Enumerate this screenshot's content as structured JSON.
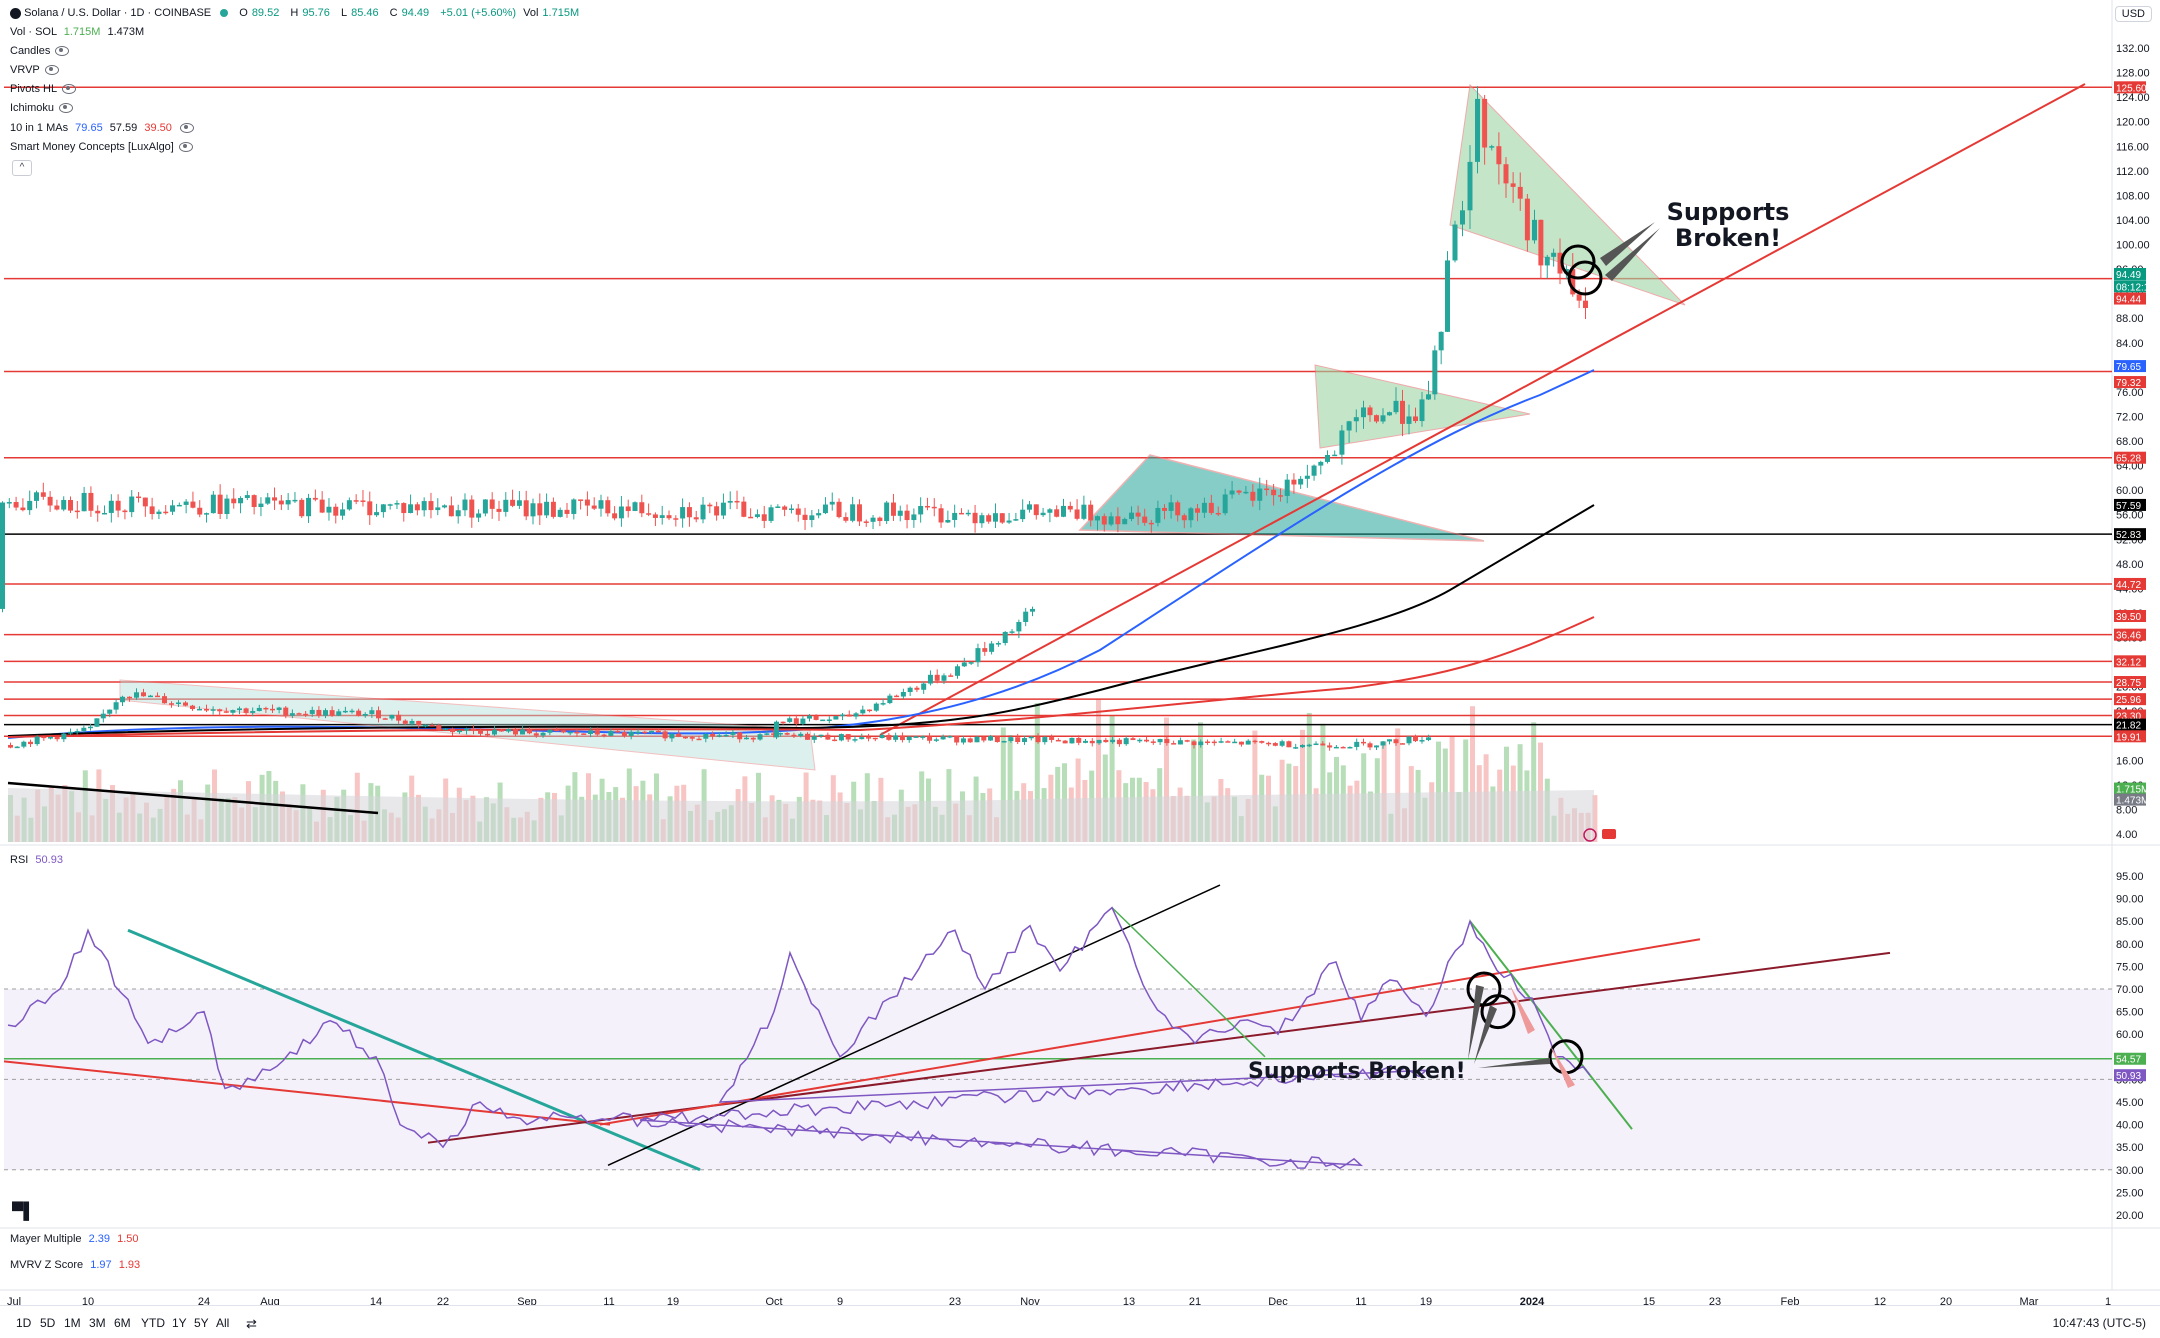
{
  "header": {
    "symbol_title": "Solana / U.S. Dollar · 1D · COINBASE",
    "open_label": "O",
    "open": "89.52",
    "high_label": "H",
    "high": "95.76",
    "low_label": "L",
    "low": "85.46",
    "close_label": "C",
    "close": "94.49",
    "change": "+5.01 (+5.60%)",
    "vol_label": "Vol",
    "vol": "1.715M",
    "currency": "USD"
  },
  "indicators": {
    "vol_sol": {
      "label": "Vol · SOL",
      "v1": "1.715M",
      "v2": "1.473M"
    },
    "candles": "Candles",
    "vrvp": "VRVP",
    "pivots": "Pivots HL",
    "ichimoku": "Ichimoku",
    "mas": {
      "label": "10 in 1 MAs",
      "v1": "79.65",
      "v2": "57.59",
      "v3": "39.50"
    },
    "smc": "Smart Money Concepts [LuxAlgo]",
    "rsi": {
      "label": "RSI",
      "value": "50.93"
    },
    "mayer": {
      "label": "Mayer Multiple",
      "v1": "2.39",
      "v2": "1.50"
    },
    "mvrv": {
      "label": "MVRV Z Score",
      "v1": "1.97",
      "v2": "1.93"
    }
  },
  "annotations": {
    "top_line1": "Supports",
    "top_line2": "Broken!",
    "rsi_text": "Supports Broken!"
  },
  "colors": {
    "up": "#26a69a",
    "down": "#ef5350",
    "red_line": "#e53935",
    "ma_blue": "#2962ff",
    "ma_black": "#000000",
    "ma_red": "#e53935",
    "rsi_line": "#7e57c2",
    "triangle_fill": "#9fd4a6",
    "triangle_teal": "#26a69a"
  },
  "price_axis": {
    "ticks": [
      "132.00",
      "128.00",
      "124.00",
      "120.00",
      "116.00",
      "112.00",
      "108.00",
      "104.00",
      "100.00",
      "96.00",
      "92.00",
      "88.00",
      "84.00",
      "80.00",
      "76.00",
      "72.00",
      "68.00",
      "64.00",
      "60.00",
      "56.00",
      "52.00",
      "48.00",
      "44.00",
      "40.00",
      "36.00",
      "32.00",
      "28.00",
      "24.00",
      "20.00",
      "16.00",
      "12.00",
      "8.00",
      "4.00"
    ],
    "level_boxes": [
      {
        "label": "125.60",
        "color": "#e53935"
      },
      {
        "label": "94.49",
        "color": "#089981"
      },
      {
        "label": "08:12:16",
        "color": "#089981"
      },
      {
        "label": "94.44",
        "color": "#e53935"
      },
      {
        "label": "79.65",
        "color": "#2962ff"
      },
      {
        "label": "79.32",
        "color": "#e53935"
      },
      {
        "label": "65.28",
        "color": "#e53935"
      },
      {
        "label": "57.59",
        "color": "#000000"
      },
      {
        "label": "52.83",
        "color": "#000000"
      },
      {
        "label": "44.72",
        "color": "#e53935"
      },
      {
        "label": "39.50",
        "color": "#e53935"
      },
      {
        "label": "36.46",
        "color": "#e53935"
      },
      {
        "label": "32.12",
        "color": "#e53935"
      },
      {
        "label": "28.75",
        "color": "#e53935"
      },
      {
        "label": "25.96",
        "color": "#e53935"
      },
      {
        "label": "23.30",
        "color": "#e53935"
      },
      {
        "label": "21.82",
        "color": "#000000"
      },
      {
        "label": "19.91",
        "color": "#e53935"
      },
      {
        "label": "1.715M",
        "color": "#4caf50"
      },
      {
        "label": "1.473M",
        "color": "#787b86"
      }
    ]
  },
  "rsi_axis": {
    "ticks": [
      "95.00",
      "90.00",
      "85.00",
      "80.00",
      "75.00",
      "70.00",
      "65.00",
      "60.00",
      "55.00",
      "50.00",
      "45.00",
      "40.00",
      "35.00",
      "30.00",
      "25.00",
      "20.00"
    ],
    "level_boxes": [
      {
        "label": "54.57",
        "color": "#4caf50"
      },
      {
        "label": "50.93",
        "color": "#7e57c2"
      }
    ]
  },
  "time_axis": [
    "Jul",
    "10",
    "24",
    "Aug",
    "14",
    "22",
    "Sep",
    "11",
    "19",
    "Oct",
    "9",
    "23",
    "Nov",
    "13",
    "21",
    "Dec",
    "11",
    "19",
    "2024",
    "15",
    "23",
    "Feb",
    "12",
    "20",
    "Mar",
    "1"
  ],
  "bottom": {
    "ranges": [
      "1D",
      "5D",
      "1M",
      "3M",
      "6M",
      "YTD",
      "1Y",
      "5Y",
      "All"
    ],
    "clock": "10:47:43 (UTC-5)"
  },
  "chart_data": [
    {
      "type": "candlestick",
      "title": "Solana / U.S. Dollar · 1D · COINBASE",
      "ylim": [
        4,
        132
      ],
      "horizontal_levels": [
        125.6,
        94.44,
        79.32,
        65.28,
        52.83,
        44.72,
        36.46,
        32.12,
        28.75,
        25.96,
        23.3,
        21.82,
        19.91
      ],
      "close_path": [
        {
          "date": "Jul",
          "close": 18.5
        },
        {
          "date": "10",
          "close": 21.0
        },
        {
          "date": "Jul 14",
          "close": 27.0
        },
        {
          "date": "24",
          "close": 24.5
        },
        {
          "date": "Aug",
          "close": 24.0
        },
        {
          "date": "14",
          "close": 23.5
        },
        {
          "date": "22",
          "close": 21.0
        },
        {
          "date": "Sep",
          "close": 20.5
        },
        {
          "date": "11",
          "close": 18.5
        },
        {
          "date": "19",
          "close": 19.8
        },
        {
          "date": "Oct",
          "close": 22.5
        },
        {
          "date": "9",
          "close": 22.8
        },
        {
          "date": "23",
          "close": 31.0
        },
        {
          "date": "Nov",
          "close": 40.0
        },
        {
          "date": "Nov 11",
          "close": 58.0
        },
        {
          "date": "13",
          "close": 56.0
        },
        {
          "date": "21",
          "close": 57.0
        },
        {
          "date": "Dec",
          "close": 60.0
        },
        {
          "date": "Dec 3",
          "close": 65.0
        },
        {
          "date": "11",
          "close": 72.0
        },
        {
          "date": "19",
          "close": 73.5
        },
        {
          "date": "Dec 22",
          "close": 95.0
        },
        {
          "date": "Dec 25",
          "close": 121.0
        },
        {
          "date": "2024",
          "close": 101.0
        },
        {
          "date": "Jan 5",
          "close": 89.5
        },
        {
          "date": "Jan 6",
          "close": 94.49
        }
      ],
      "moving_averages": [
        {
          "name": "MA 79.65",
          "last": 79.65
        },
        {
          "name": "MA 57.59",
          "last": 57.59
        },
        {
          "name": "MA 39.50",
          "last": 39.5
        }
      ]
    },
    {
      "type": "line",
      "title": "RSI",
      "ylim": [
        20,
        95
      ],
      "bands": [
        30,
        50,
        70
      ],
      "series": [
        {
          "name": "RSI",
          "points": [
            {
              "date": "Jul",
              "v": 62
            },
            {
              "date": "Jul 8",
              "v": 70
            },
            {
              "date": "10",
              "v": 83
            },
            {
              "date": "Jul 17",
              "v": 58
            },
            {
              "date": "24",
              "v": 65
            },
            {
              "date": "Jul 28",
              "v": 48
            },
            {
              "date": "Aug",
              "v": 52
            },
            {
              "date": "Aug 6",
              "v": 63
            },
            {
              "date": "14",
              "v": 55
            },
            {
              "date": "Aug 18",
              "v": 40
            },
            {
              "date": "22",
              "v": 35
            },
            {
              "date": "Aug 28",
              "v": 45
            },
            {
              "date": "Sep",
              "v": 40
            },
            {
              "date": "Sep 6",
              "v": 42
            },
            {
              "date": "11",
              "v": 31
            },
            {
              "date": "Sep 15",
              "v": 41
            },
            {
              "date": "19",
              "v": 52
            },
            {
              "date": "Sep 25",
              "v": 45
            },
            {
              "date": "Oct",
              "v": 65
            },
            {
              "date": "Oct 4",
              "v": 78
            },
            {
              "date": "9",
              "v": 55
            },
            {
              "date": "Oct 16",
              "v": 68
            },
            {
              "date": "23",
              "v": 83
            },
            {
              "date": "Oct 28",
              "v": 70
            },
            {
              "date": "Nov",
              "v": 84
            },
            {
              "date": "Nov 6",
              "v": 74
            },
            {
              "date": "Nov 10",
              "v": 88
            },
            {
              "date": "13",
              "v": 80
            },
            {
              "date": "Nov 17",
              "v": 68
            },
            {
              "date": "21",
              "v": 58
            },
            {
              "date": "Nov 26",
              "v": 63
            },
            {
              "date": "Dec",
              "v": 60
            },
            {
              "date": "Dec 5",
              "v": 76
            },
            {
              "date": "11",
              "v": 63
            },
            {
              "date": "Dec 14",
              "v": 72
            },
            {
              "date": "19",
              "v": 64
            },
            {
              "date": "Dec 23",
              "v": 85
            },
            {
              "date": "Dec 26",
              "v": 77
            },
            {
              "date": "2024",
              "v": 68
            },
            {
              "date": "Jan 3",
              "v": 55
            },
            {
              "date": "Jan 6",
              "v": 50.93
            }
          ]
        }
      ]
    }
  ]
}
